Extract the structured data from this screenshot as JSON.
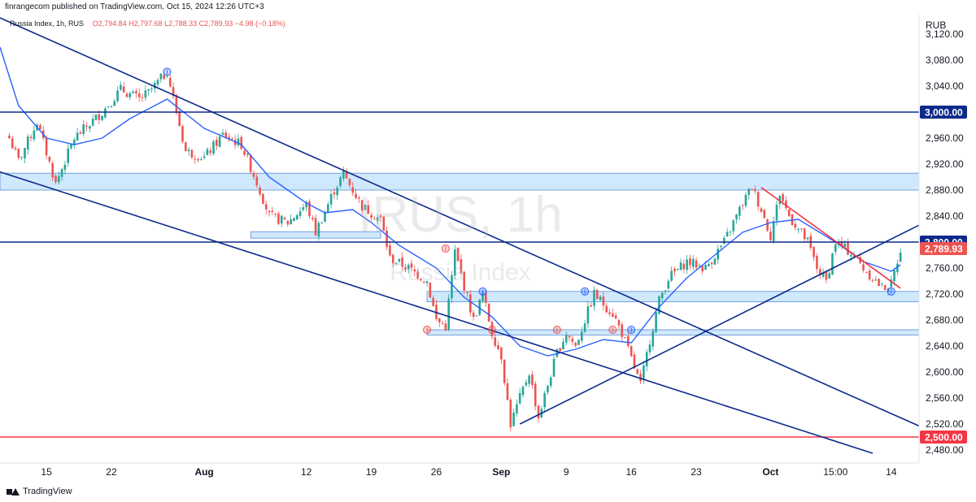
{
  "header": {
    "published": "finrangecom published on TradingView.com, Oct 15, 2024 12:26 UTC+3",
    "symbol_line": "Russia Index, 1h, RUS",
    "ohlc": "O2,794.84  H2,797.68  L2,788.33  C2,789.93  −4.98 (−0.18%)"
  },
  "currency": "RUB",
  "footer": {
    "brand": "TradingView"
  },
  "watermark": {
    "ticker": "IRUS, 1h",
    "name": "Russia Index"
  },
  "colors": {
    "candle_up": "#26a69a",
    "candle_down": "#ef5350",
    "ma": "#2962ff",
    "trend": "#0d2a8a",
    "red_line": "#f23645",
    "zone": "#bbdefb"
  },
  "chart_data": {
    "type": "candlestick",
    "title": "Russia Index, 1h, RUS",
    "ylim": [
      2460,
      3150
    ],
    "y_ticks": [
      "3,120.00",
      "3,080.00",
      "3,040.00",
      "2,960.00",
      "2,920.00",
      "2,880.00",
      "2,840.00",
      "2,760.00",
      "2,720.00",
      "2,680.00",
      "2,640.00",
      "2,600.00",
      "2,560.00",
      "2,520.00",
      "2,480.00"
    ],
    "y_tick_values": [
      3120,
      3080,
      3040,
      2960,
      2920,
      2880,
      2840,
      2760,
      2720,
      2680,
      2640,
      2600,
      2560,
      2520,
      2480
    ],
    "x_ticks": [
      {
        "label": "15",
        "d": "2024-07-15",
        "bold": false
      },
      {
        "label": "22",
        "d": "2024-07-22",
        "bold": false
      },
      {
        "label": "Aug",
        "d": "2024-08-01",
        "bold": true
      },
      {
        "label": "12",
        "d": "2024-08-12",
        "bold": false
      },
      {
        "label": "19",
        "d": "2024-08-19",
        "bold": false
      },
      {
        "label": "26",
        "d": "2024-08-26",
        "bold": false
      },
      {
        "label": "Sep",
        "d": "2024-09-02",
        "bold": true
      },
      {
        "label": "9",
        "d": "2024-09-09",
        "bold": false
      },
      {
        "label": "16",
        "d": "2024-09-16",
        "bold": false
      },
      {
        "label": "23",
        "d": "2024-09-23",
        "bold": false
      },
      {
        "label": "Oct",
        "d": "2024-10-01",
        "bold": true
      },
      {
        "label": "15:00",
        "d": "2024-10-08",
        "bold": false
      },
      {
        "label": "14",
        "d": "2024-10-14",
        "bold": false
      }
    ],
    "key_path": [
      [
        "2024-07-11",
        2960
      ],
      [
        "2024-07-12",
        2925
      ],
      [
        "2024-07-14",
        2985
      ],
      [
        "2024-07-16",
        2890
      ],
      [
        "2024-07-18",
        2960
      ],
      [
        "2024-07-21",
        3000
      ],
      [
        "2024-07-23",
        3035
      ],
      [
        "2024-07-25",
        3020
      ],
      [
        "2024-07-26",
        3030
      ],
      [
        "2024-07-28",
        3062
      ],
      [
        "2024-07-29",
        3000
      ],
      [
        "2024-07-30",
        2940
      ],
      [
        "2024-08-01",
        2930
      ],
      [
        "2024-08-03",
        2965
      ],
      [
        "2024-08-05",
        2950
      ],
      [
        "2024-08-07",
        2880
      ],
      [
        "2024-08-08",
        2840
      ],
      [
        "2024-08-10",
        2830
      ],
      [
        "2024-08-12",
        2858
      ],
      [
        "2024-08-13",
        2815
      ],
      [
        "2024-08-15",
        2880
      ],
      [
        "2024-08-16",
        2905
      ],
      [
        "2024-08-18",
        2855
      ],
      [
        "2024-08-20",
        2835
      ],
      [
        "2024-08-21",
        2775
      ],
      [
        "2024-08-23",
        2760
      ],
      [
        "2024-08-25",
        2740
      ],
      [
        "2024-08-26",
        2680
      ],
      [
        "2024-08-27",
        2670
      ],
      [
        "2024-08-28",
        2785
      ],
      [
        "2024-08-30",
        2680
      ],
      [
        "2024-08-31",
        2720
      ],
      [
        "2024-09-01",
        2660
      ],
      [
        "2024-09-02",
        2625
      ],
      [
        "2024-09-03",
        2520
      ],
      [
        "2024-09-05",
        2600
      ],
      [
        "2024-09-06",
        2530
      ],
      [
        "2024-09-08",
        2630
      ],
      [
        "2024-09-09",
        2660
      ],
      [
        "2024-09-10",
        2640
      ],
      [
        "2024-09-12",
        2720
      ],
      [
        "2024-09-14",
        2690
      ],
      [
        "2024-09-15",
        2660
      ],
      [
        "2024-09-16",
        2620
      ],
      [
        "2024-09-17",
        2580
      ],
      [
        "2024-09-18",
        2650
      ],
      [
        "2024-09-19",
        2710
      ],
      [
        "2024-09-20",
        2745
      ],
      [
        "2024-09-22",
        2770
      ],
      [
        "2024-09-24",
        2760
      ],
      [
        "2024-09-26",
        2800
      ],
      [
        "2024-09-28",
        2860
      ],
      [
        "2024-09-29",
        2885
      ],
      [
        "2024-09-30",
        2850
      ],
      [
        "2024-10-01",
        2810
      ],
      [
        "2024-10-02",
        2875
      ],
      [
        "2024-10-03",
        2840
      ],
      [
        "2024-10-05",
        2800
      ],
      [
        "2024-10-06",
        2760
      ],
      [
        "2024-10-07",
        2740
      ],
      [
        "2024-10-08",
        2800
      ],
      [
        "2024-10-10",
        2780
      ],
      [
        "2024-10-11",
        2760
      ],
      [
        "2024-10-12",
        2745
      ],
      [
        "2024-10-13",
        2730
      ],
      [
        "2024-10-14",
        2735
      ],
      [
        "2024-10-15",
        2790
      ]
    ],
    "moving_average": [
      [
        "2024-07-10",
        3100
      ],
      [
        "2024-07-12",
        3010
      ],
      [
        "2024-07-15",
        2960
      ],
      [
        "2024-07-18",
        2950
      ],
      [
        "2024-07-21",
        2960
      ],
      [
        "2024-07-24",
        2990
      ],
      [
        "2024-07-28",
        3020
      ],
      [
        "2024-08-01",
        2975
      ],
      [
        "2024-08-05",
        2950
      ],
      [
        "2024-08-08",
        2900
      ],
      [
        "2024-08-12",
        2860
      ],
      [
        "2024-08-14",
        2845
      ],
      [
        "2024-08-17",
        2850
      ],
      [
        "2024-08-19",
        2830
      ],
      [
        "2024-08-22",
        2795
      ],
      [
        "2024-08-26",
        2760
      ],
      [
        "2024-08-29",
        2715
      ],
      [
        "2024-09-01",
        2685
      ],
      [
        "2024-09-04",
        2640
      ],
      [
        "2024-09-07",
        2625
      ],
      [
        "2024-09-10",
        2635
      ],
      [
        "2024-09-13",
        2650
      ],
      [
        "2024-09-16",
        2645
      ],
      [
        "2024-09-19",
        2700
      ],
      [
        "2024-09-22",
        2745
      ],
      [
        "2024-09-25",
        2780
      ],
      [
        "2024-09-28",
        2815
      ],
      [
        "2024-10-01",
        2830
      ],
      [
        "2024-10-04",
        2835
      ],
      [
        "2024-10-08",
        2800
      ],
      [
        "2024-10-11",
        2770
      ],
      [
        "2024-10-14",
        2755
      ],
      [
        "2024-10-15",
        2765
      ]
    ],
    "levels": [
      {
        "name": "3,000.00",
        "value": 3000,
        "color": "#0d2a8a"
      },
      {
        "name": "2,800.00",
        "value": 2800,
        "color": "#0d2a8a"
      },
      {
        "name": "2,500.00",
        "value": 2500,
        "color": "#f23645"
      }
    ],
    "last_price": {
      "label": "2,789.93",
      "value": 2789.93,
      "color": "#ef5350"
    },
    "zones": [
      {
        "d1": "2024-07-10",
        "d2": "2024-10-17",
        "y1": 2880,
        "y2": 2906,
        "full": true
      },
      {
        "d1": "2024-08-06",
        "d2": "2024-08-20",
        "y1": 2806,
        "y2": 2816,
        "full": false
      },
      {
        "d1": "2024-08-25",
        "d2": "2024-10-17",
        "y1": 2708,
        "y2": 2724,
        "full": true
      },
      {
        "d1": "2024-08-25",
        "d2": "2024-10-17",
        "y1": 2657,
        "y2": 2665,
        "full": true
      }
    ],
    "trend_lines": [
      {
        "d1": "2024-07-10",
        "y1": 3145,
        "d2": "2024-10-17",
        "y2": 2517,
        "color": "#0d2a8a"
      },
      {
        "d1": "2024-07-10",
        "y1": 2908,
        "d2": "2024-10-12",
        "y2": 2475,
        "color": "#0d2a8a"
      },
      {
        "d1": "2024-09-04",
        "y1": 2520,
        "d2": "2024-10-17",
        "y2": 2826,
        "color": "#0d2a8a"
      },
      {
        "d1": "2024-09-30",
        "y1": 2884,
        "d2": "2024-10-15",
        "y2": 2729,
        "color": "#f23645"
      }
    ],
    "pivot_markers": [
      {
        "d": "2024-07-28",
        "v": 3062,
        "color": "#2962ff"
      },
      {
        "d": "2024-08-27",
        "v": 2790,
        "color": "#ef5350"
      },
      {
        "d": "2024-08-25",
        "v": 2665,
        "color": "#ef5350"
      },
      {
        "d": "2024-08-31",
        "v": 2724,
        "color": "#2962ff"
      },
      {
        "d": "2024-09-01",
        "v": 2665,
        "color": "#ef5350"
      },
      {
        "d": "2024-09-08",
        "v": 2665,
        "color": "#ef5350"
      },
      {
        "d": "2024-09-11",
        "v": 2724,
        "color": "#2962ff"
      },
      {
        "d": "2024-09-14",
        "v": 2665,
        "color": "#ef5350"
      },
      {
        "d": "2024-09-16",
        "v": 2665,
        "color": "#2962ff"
      },
      {
        "d": "2024-10-14",
        "v": 2724,
        "color": "#2962ff"
      }
    ]
  }
}
